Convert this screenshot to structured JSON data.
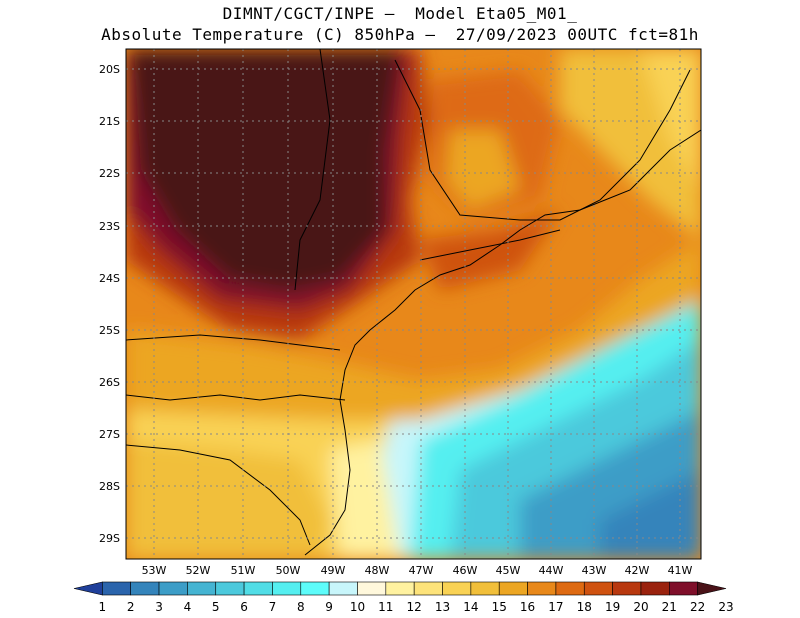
{
  "title": {
    "line1": "DIMNT/CGCT/INPE —  Model Eta05_M01_",
    "line2": "Absolute Temperature (C) 850hPa —  27/09/2023 00UTC fct=81h"
  },
  "map": {
    "lat_labels": [
      "20S",
      "21S",
      "22S",
      "23S",
      "24S",
      "25S",
      "26S",
      "27S",
      "28S",
      "29S"
    ],
    "lon_labels": [
      "53W",
      "52W",
      "51W",
      "50W",
      "49W",
      "48W",
      "47W",
      "46W",
      "45W",
      "44W",
      "43W",
      "42W",
      "41W"
    ],
    "grid": "dotted"
  },
  "colorbar": {
    "labels": [
      "1",
      "2",
      "3",
      "4",
      "5",
      "6",
      "7",
      "8",
      "9",
      "10",
      "11",
      "12",
      "13",
      "14",
      "15",
      "16",
      "17",
      "18",
      "19",
      "20",
      "21",
      "22",
      "23"
    ],
    "colors": [
      "#1f3f9a",
      "#2a64ac",
      "#3484bb",
      "#3c9dc7",
      "#45b4d2",
      "#4cc9dc",
      "#51dde6",
      "#55eff0",
      "#5dfcfa",
      "#c8f6fb",
      "#fff8dc",
      "#fff2a0",
      "#fde37a",
      "#f9d254",
      "#f1bf3a",
      "#eca623",
      "#e8881a",
      "#de6a12",
      "#cf5210",
      "#b8380f",
      "#9a220e",
      "#7f0f2a",
      "#4a1218"
    ]
  }
}
